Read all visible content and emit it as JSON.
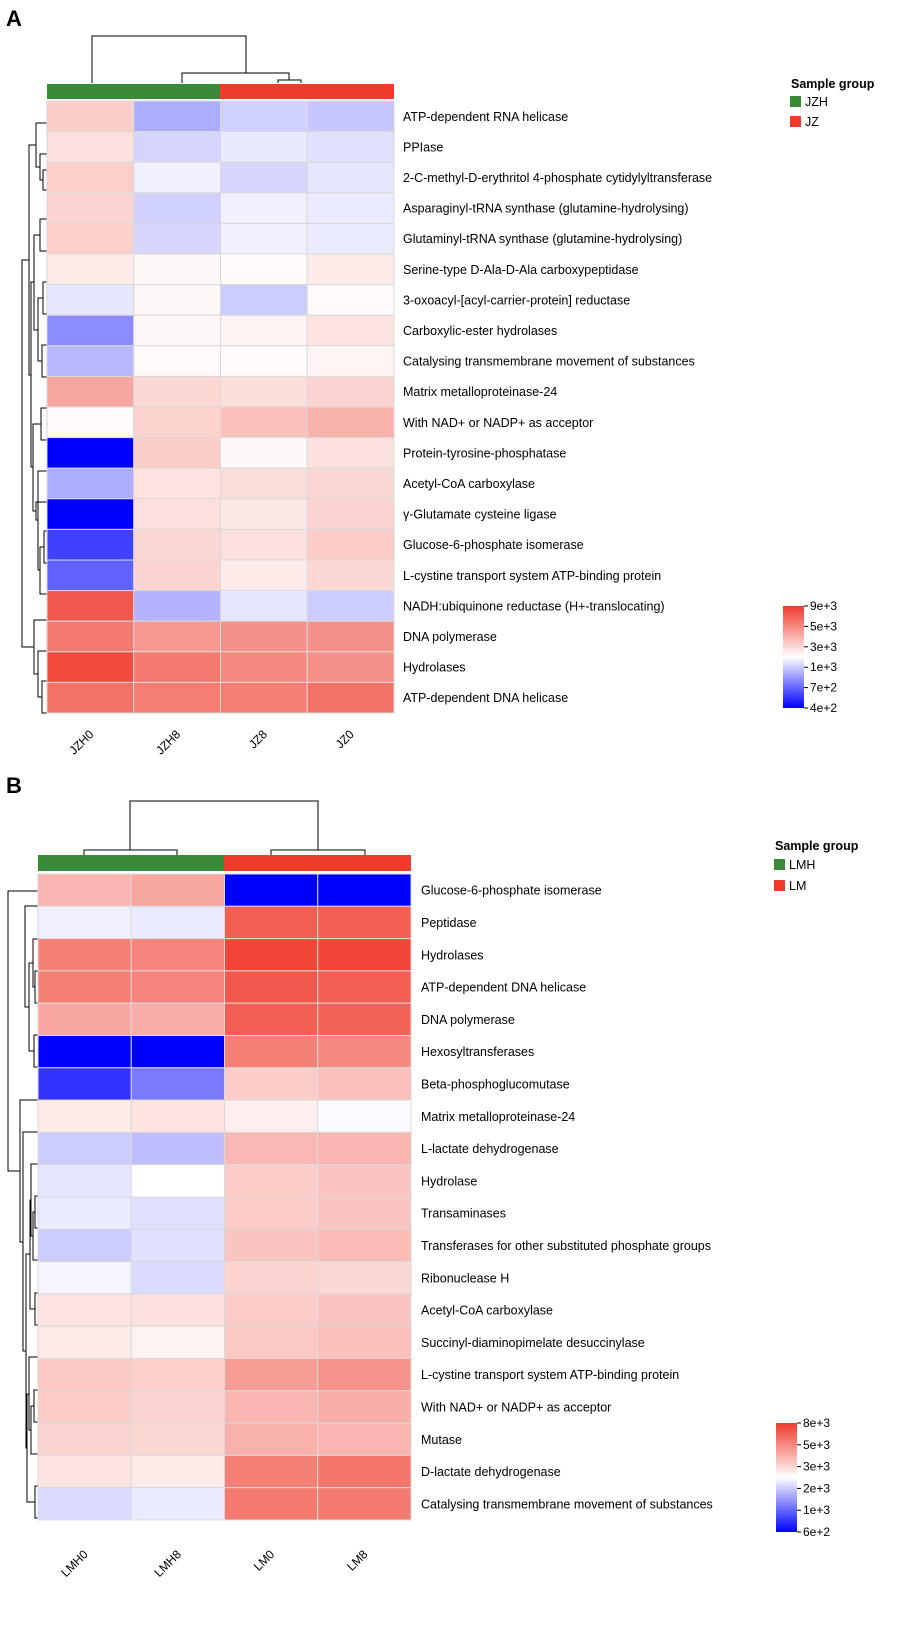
{
  "colors": {
    "low": "#0000ff",
    "mid": "#ffffff",
    "high": "#ef3b2c",
    "group_a": "#3a8a3a",
    "group_b": "#ef3b2c",
    "grid": "#d9d9d9"
  },
  "chart_data": [
    {
      "type": "heatmap",
      "panel": "A",
      "columns": [
        "JZH0",
        "JZH8",
        "JZ8",
        "JZ0"
      ],
      "column_groups": [
        "JZH",
        "JZH",
        "JZ",
        "JZ"
      ],
      "legend": {
        "title": "Sample group",
        "entries": [
          {
            "label": "JZH",
            "color": "#3a8a3a"
          },
          {
            "label": "JZ",
            "color": "#ef3b2c"
          }
        ]
      },
      "colorbar": {
        "ticks": [
          "9e+3",
          "5e+3",
          "3e+3",
          "1e+3",
          "7e+2",
          "4e+2"
        ],
        "min": 400,
        "max": 9000
      },
      "rows": [
        "ATP-dependent RNA helicase",
        "PPIase",
        "2-C-methyl-D-erythritol 4-phosphate cytidylyltransferase",
        "Asparaginyl-tRNA synthase (glutamine-hydrolysing)",
        "Glutaminyl-tRNA synthase (glutamine-hydrolysing)",
        "Serine-type D-Ala-D-Ala carboxypeptidase",
        "3-oxoacyl-[acyl-carrier-protein] reductase",
        "Carboxylic-ester hydrolases",
        "Catalysing transmembrane movement of substances",
        "Matrix metalloproteinase-24",
        "With NAD+ or NADP+ as acceptor",
        "Protein-tyrosine-phosphatase",
        "Acetyl-CoA carboxylase",
        "γ-Glutamate cysteine ligase",
        "Glucose-6-phosphate isomerase",
        "L-cystine transport system ATP-binding protein",
        "NADH:ubiquinone reductase (H+-translocating)",
        "DNA polymerase",
        "Hydrolases",
        "ATP-dependent DNA helicase"
      ],
      "values": [
        [
          0.25,
          -0.32,
          -0.18,
          -0.22
        ],
        [
          0.16,
          -0.17,
          -0.09,
          -0.12
        ],
        [
          0.24,
          -0.06,
          -0.16,
          -0.1
        ],
        [
          0.22,
          -0.18,
          -0.06,
          -0.08
        ],
        [
          0.24,
          -0.16,
          -0.06,
          -0.08
        ],
        [
          0.1,
          0.04,
          0.02,
          0.1
        ],
        [
          -0.1,
          0.04,
          -0.2,
          0.03
        ],
        [
          -0.45,
          0.04,
          0.06,
          0.14
        ],
        [
          -0.28,
          0.03,
          0.02,
          0.05
        ],
        [
          0.45,
          0.2,
          0.17,
          0.22
        ],
        [
          0.02,
          0.23,
          0.32,
          0.4
        ],
        [
          -1.0,
          0.25,
          0.04,
          0.16
        ],
        [
          -0.32,
          0.15,
          0.18,
          0.2
        ],
        [
          -1.0,
          0.16,
          0.12,
          0.22
        ],
        [
          -0.75,
          0.2,
          0.16,
          0.26
        ],
        [
          -0.62,
          0.22,
          0.1,
          0.2
        ],
        [
          0.85,
          -0.3,
          -0.1,
          -0.2
        ],
        [
          0.68,
          0.52,
          0.56,
          0.56
        ],
        [
          0.92,
          0.68,
          0.6,
          0.56
        ],
        [
          0.72,
          0.66,
          0.66,
          0.72
        ]
      ]
    },
    {
      "type": "heatmap",
      "panel": "B",
      "columns": [
        "LMH0",
        "LMH8",
        "LM0",
        "LM8"
      ],
      "column_groups": [
        "LMH",
        "LMH",
        "LM",
        "LM"
      ],
      "legend": {
        "title": "Sample group",
        "entries": [
          {
            "label": "LMH",
            "color": "#3a8a3a"
          },
          {
            "label": "LM",
            "color": "#ef3b2c"
          }
        ]
      },
      "colorbar": {
        "ticks": [
          "8e+3",
          "5e+3",
          "3e+3",
          "2e+3",
          "1e+3",
          "6e+2"
        ],
        "min": 600,
        "max": 8000
      },
      "rows": [
        "Glucose-6-phosphate isomerase",
        "Peptidase",
        "Hydrolases",
        "ATP-dependent DNA helicase",
        "DNA polymerase",
        "Hexosyltransferases",
        "Beta-phosphoglucomutase",
        "Matrix metalloproteinase-24",
        "L-lactate dehydrogenase",
        "Hydrolase",
        "Transaminases",
        "Transferases for other substituted phosphate groups",
        "Ribonuclease H",
        "Acetyl-CoA carboxylase",
        "Succinyl-diaminopimelate desuccinylase",
        "L-cystine transport system ATP-binding protein",
        "With NAD+ or NADP+ as acceptor",
        "Mutase",
        "D-lactate dehydrogenase",
        "Catalysing transmembrane movement of substances"
      ],
      "values": [
        [
          0.38,
          0.45,
          -1.0,
          -1.0
        ],
        [
          -0.06,
          -0.08,
          0.82,
          0.82
        ],
        [
          0.65,
          0.62,
          0.95,
          0.95
        ],
        [
          0.65,
          0.62,
          0.85,
          0.82
        ],
        [
          0.45,
          0.42,
          0.82,
          0.8
        ],
        [
          -1.0,
          -1.0,
          0.65,
          0.6
        ],
        [
          -0.8,
          -0.52,
          0.26,
          0.32
        ],
        [
          0.1,
          0.14,
          0.08,
          -0.02
        ],
        [
          -0.2,
          -0.26,
          0.36,
          0.38
        ],
        [
          -0.1,
          0.0,
          0.26,
          0.3
        ],
        [
          -0.08,
          -0.12,
          0.26,
          0.3
        ],
        [
          -0.2,
          -0.12,
          0.3,
          0.34
        ],
        [
          -0.04,
          -0.14,
          0.22,
          0.2
        ],
        [
          0.14,
          0.16,
          0.26,
          0.3
        ],
        [
          0.1,
          0.06,
          0.28,
          0.32
        ],
        [
          0.28,
          0.24,
          0.5,
          0.55
        ],
        [
          0.26,
          0.22,
          0.38,
          0.42
        ],
        [
          0.22,
          0.2,
          0.4,
          0.38
        ],
        [
          0.14,
          0.1,
          0.65,
          0.7
        ],
        [
          -0.14,
          -0.08,
          0.68,
          0.68
        ]
      ]
    }
  ]
}
